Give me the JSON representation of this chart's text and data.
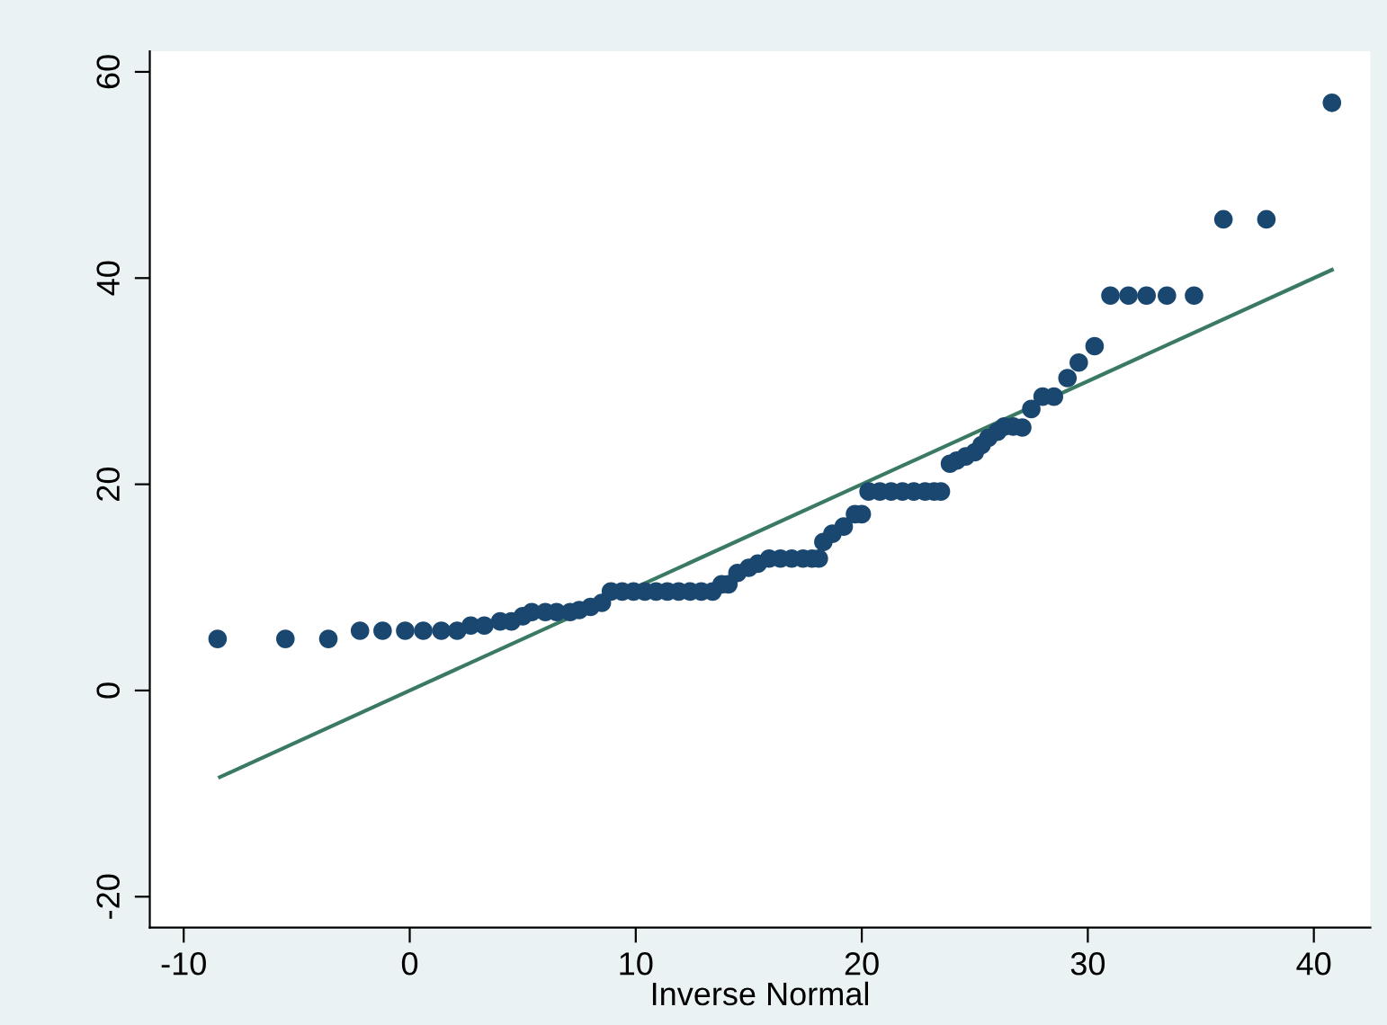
{
  "chart_data": {
    "type": "scatter",
    "xlabel": "Inverse Normal",
    "xlim": [
      -11.5,
      42.5
    ],
    "ylim": [
      -23,
      62
    ],
    "xticks": [
      -10,
      0,
      10,
      20,
      30,
      40
    ],
    "yticks": [
      -20,
      0,
      20,
      40,
      60
    ],
    "grid": false,
    "series": [
      {
        "color": "#1a476f",
        "marker": "circle",
        "x": [
          -8.5,
          -5.5,
          -3.6,
          -2.2,
          -1.2,
          -0.2,
          0.6,
          1.4,
          2.1,
          2.7,
          3.3,
          4.0,
          4.5,
          5.0,
          5.4,
          6.0,
          6.5,
          7.1,
          7.5,
          8.0,
          8.5,
          8.9,
          9.4,
          9.9,
          10.4,
          10.9,
          11.4,
          11.9,
          12.4,
          12.9,
          13.4,
          13.8,
          14.1,
          14.5,
          15.0,
          15.4,
          15.9,
          16.4,
          16.9,
          17.4,
          17.8,
          18.1,
          18.3,
          18.7,
          19.2,
          19.7,
          20.0,
          20.3,
          20.8,
          21.3,
          21.8,
          22.3,
          22.8,
          23.2,
          23.5,
          23.9,
          24.2,
          24.6,
          25.0,
          25.3,
          25.6,
          26.0,
          26.3,
          26.7,
          27.1,
          27.5,
          28.0,
          28.5,
          29.1,
          29.6,
          30.3,
          31.0,
          31.8,
          32.6,
          33.5,
          34.7,
          36.0,
          37.9,
          40.8
        ],
        "values": [
          5.0,
          5.0,
          5.0,
          5.8,
          5.8,
          5.8,
          5.8,
          5.8,
          5.8,
          6.3,
          6.3,
          6.7,
          6.7,
          7.2,
          7.6,
          7.6,
          7.6,
          7.6,
          7.8,
          8.1,
          8.5,
          9.6,
          9.6,
          9.6,
          9.6,
          9.6,
          9.6,
          9.6,
          9.6,
          9.6,
          9.6,
          10.3,
          10.3,
          11.4,
          11.9,
          12.3,
          12.8,
          12.8,
          12.8,
          12.8,
          12.8,
          12.8,
          14.4,
          15.2,
          15.9,
          17.1,
          17.1,
          19.3,
          19.3,
          19.3,
          19.3,
          19.3,
          19.3,
          19.3,
          19.3,
          22.0,
          22.3,
          22.7,
          23.1,
          23.8,
          24.5,
          25.1,
          25.6,
          25.6,
          25.5,
          27.3,
          28.5,
          28.5,
          30.3,
          31.8,
          33.4,
          38.3,
          38.3,
          38.3,
          38.3,
          38.3,
          45.7,
          45.7,
          57.0
        ]
      },
      {
        "type": "line",
        "color": "#3a7a62",
        "x": [
          -8.4,
          40.8
        ],
        "values": [
          -8.4,
          40.8
        ],
        "line_style": "solid",
        "marker": "none"
      }
    ]
  }
}
